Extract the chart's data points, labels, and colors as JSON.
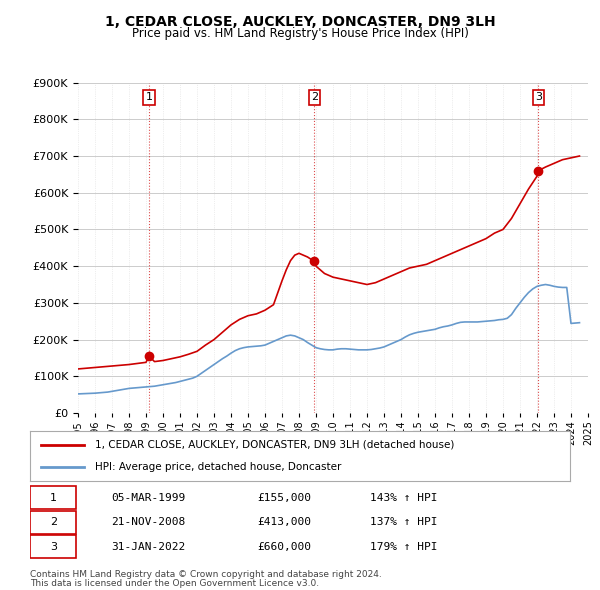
{
  "title": "1, CEDAR CLOSE, AUCKLEY, DONCASTER, DN9 3LH",
  "subtitle": "Price paid vs. HM Land Registry's House Price Index (HPI)",
  "ylim": [
    0,
    900000
  ],
  "yticks": [
    0,
    100000,
    200000,
    300000,
    400000,
    500000,
    600000,
    700000,
    800000,
    900000
  ],
  "background_color": "#ffffff",
  "grid_color": "#cccccc",
  "hpi_color": "#6699cc",
  "price_color": "#cc0000",
  "sale_marker_color": "#cc0000",
  "sales": [
    {
      "label": "1",
      "date_num": 1999.18,
      "price": 155000,
      "date_str": "05-MAR-1999",
      "pct": "143%"
    },
    {
      "label": "2",
      "date_num": 2008.9,
      "price": 413000,
      "date_str": "21-NOV-2008",
      "pct": "137%"
    },
    {
      "label": "3",
      "date_num": 2022.08,
      "price": 660000,
      "date_str": "31-JAN-2022",
      "pct": "179%"
    }
  ],
  "legend_label_price": "1, CEDAR CLOSE, AUCKLEY, DONCASTER, DN9 3LH (detached house)",
  "legend_label_hpi": "HPI: Average price, detached house, Doncaster",
  "footer1": "Contains HM Land Registry data © Crown copyright and database right 2024.",
  "footer2": "This data is licensed under the Open Government Licence v3.0.",
  "hpi_data": {
    "years": [
      1995,
      1995.25,
      1995.5,
      1995.75,
      1996,
      1996.25,
      1996.5,
      1996.75,
      1997,
      1997.25,
      1997.5,
      1997.75,
      1998,
      1998.25,
      1998.5,
      1998.75,
      1999,
      1999.25,
      1999.5,
      1999.75,
      2000,
      2000.25,
      2000.5,
      2000.75,
      2001,
      2001.25,
      2001.5,
      2001.75,
      2002,
      2002.25,
      2002.5,
      2002.75,
      2003,
      2003.25,
      2003.5,
      2003.75,
      2004,
      2004.25,
      2004.5,
      2004.75,
      2005,
      2005.25,
      2005.5,
      2005.75,
      2006,
      2006.25,
      2006.5,
      2006.75,
      2007,
      2007.25,
      2007.5,
      2007.75,
      2008,
      2008.25,
      2008.5,
      2008.75,
      2009,
      2009.25,
      2009.5,
      2009.75,
      2010,
      2010.25,
      2010.5,
      2010.75,
      2011,
      2011.25,
      2011.5,
      2011.75,
      2012,
      2012.25,
      2012.5,
      2012.75,
      2013,
      2013.25,
      2013.5,
      2013.75,
      2014,
      2014.25,
      2014.5,
      2014.75,
      2015,
      2015.25,
      2015.5,
      2015.75,
      2016,
      2016.25,
      2016.5,
      2016.75,
      2017,
      2017.25,
      2017.5,
      2017.75,
      2018,
      2018.25,
      2018.5,
      2018.75,
      2019,
      2019.25,
      2019.5,
      2019.75,
      2020,
      2020.25,
      2020.5,
      2020.75,
      2021,
      2021.25,
      2021.5,
      2021.75,
      2022,
      2022.25,
      2022.5,
      2022.75,
      2023,
      2023.25,
      2023.5,
      2023.75,
      2024,
      2024.25,
      2024.5
    ],
    "values": [
      52000,
      52500,
      53000,
      53500,
      54000,
      55000,
      56000,
      57000,
      59000,
      61000,
      63000,
      65000,
      67000,
      68000,
      69000,
      70000,
      71000,
      72000,
      73000,
      75000,
      77000,
      79000,
      81000,
      83000,
      86000,
      89000,
      92000,
      95000,
      100000,
      108000,
      116000,
      124000,
      132000,
      140000,
      148000,
      155000,
      163000,
      170000,
      175000,
      178000,
      180000,
      181000,
      182000,
      183000,
      185000,
      190000,
      195000,
      200000,
      205000,
      210000,
      212000,
      210000,
      205000,
      200000,
      192000,
      185000,
      178000,
      175000,
      173000,
      172000,
      172000,
      174000,
      175000,
      175000,
      174000,
      173000,
      172000,
      172000,
      172000,
      173000,
      175000,
      177000,
      180000,
      185000,
      190000,
      195000,
      200000,
      207000,
      213000,
      217000,
      220000,
      222000,
      224000,
      226000,
      228000,
      232000,
      235000,
      237000,
      240000,
      244000,
      247000,
      248000,
      248000,
      248000,
      248000,
      249000,
      250000,
      251000,
      252000,
      254000,
      255000,
      258000,
      268000,
      285000,
      300000,
      315000,
      328000,
      338000,
      345000,
      348000,
      350000,
      348000,
      345000,
      343000,
      342000,
      342000,
      244000,
      245000,
      246000
    ]
  },
  "price_data": {
    "years": [
      1995,
      1995.5,
      1996,
      1996.5,
      1997,
      1997.5,
      1998,
      1998.5,
      1999,
      1999.18,
      1999.5,
      2000,
      2000.5,
      2001,
      2001.5,
      2002,
      2002.5,
      2003,
      2003.5,
      2004,
      2004.5,
      2005,
      2005.5,
      2006,
      2006.5,
      2007,
      2007.25,
      2007.5,
      2007.75,
      2008,
      2008.25,
      2008.5,
      2008.9,
      2009,
      2009.5,
      2010,
      2010.5,
      2011,
      2011.5,
      2012,
      2012.5,
      2013,
      2013.5,
      2014,
      2014.5,
      2015,
      2015.5,
      2016,
      2016.5,
      2017,
      2017.5,
      2018,
      2018.5,
      2019,
      2019.5,
      2020,
      2020.5,
      2021,
      2021.5,
      2022,
      2022.08,
      2022.5,
      2023,
      2023.5,
      2024,
      2024.5
    ],
    "values": [
      120000,
      122000,
      124000,
      126000,
      128000,
      130000,
      132000,
      135000,
      138000,
      155000,
      140000,
      143000,
      148000,
      153000,
      160000,
      168000,
      185000,
      200000,
      220000,
      240000,
      255000,
      265000,
      270000,
      280000,
      295000,
      360000,
      390000,
      415000,
      430000,
      435000,
      430000,
      425000,
      413000,
      400000,
      380000,
      370000,
      365000,
      360000,
      355000,
      350000,
      355000,
      365000,
      375000,
      385000,
      395000,
      400000,
      405000,
      415000,
      425000,
      435000,
      445000,
      455000,
      465000,
      475000,
      490000,
      500000,
      530000,
      570000,
      610000,
      645000,
      660000,
      670000,
      680000,
      690000,
      695000,
      700000
    ]
  }
}
